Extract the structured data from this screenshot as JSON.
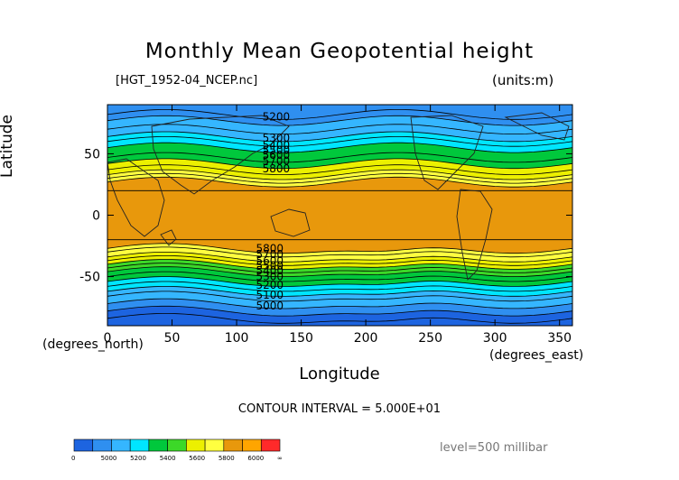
{
  "chart_data": {
    "type": "contour",
    "title": "Monthly Mean Geopotential height",
    "source_file": "[HGT_1952-04_NCEP.nc]",
    "units": "(units:m)",
    "xlabel": "Longitude",
    "ylabel": "Latitude",
    "x_unit_label": "(degrees_east)",
    "y_unit_label": "(degrees_north)",
    "xlim": [
      0,
      360
    ],
    "ylim": [
      -90,
      90
    ],
    "x_ticks": [
      0,
      50,
      100,
      150,
      200,
      250,
      300,
      350
    ],
    "y_ticks": [
      50,
      0,
      -50
    ],
    "contour_interval_text": "CONTOUR INTERVAL = 5.000E+01",
    "level_text": "level=500 millibar",
    "contour_labels": [
      "5200",
      "5300",
      "5400",
      "5500",
      "5600",
      "5700",
      "5800",
      "5800",
      "5700",
      "5600",
      "5500",
      "5400",
      "5300",
      "5200",
      "5100",
      "5000"
    ],
    "fill_bands": [
      {
        "lat": [
          -90,
          -78
        ],
        "color": "#1d64e0"
      },
      {
        "lat": [
          -78,
          -72
        ],
        "color": "#2f8ff0"
      },
      {
        "lat": [
          -72,
          -62
        ],
        "color": "#35b6ff"
      },
      {
        "lat": [
          -62,
          -54
        ],
        "color": "#00e6ff"
      },
      {
        "lat": [
          -54,
          -46
        ],
        "color": "#00c83c"
      },
      {
        "lat": [
          -46,
          -40
        ],
        "color": "#3cd828"
      },
      {
        "lat": [
          -40,
          -34
        ],
        "color": "#ecf000"
      },
      {
        "lat": [
          -34,
          -27
        ],
        "color": "#ffff40"
      },
      {
        "lat": [
          -27,
          27
        ],
        "color": "#e8980c"
      },
      {
        "lat": [
          27,
          33
        ],
        "color": "#ffff40"
      },
      {
        "lat": [
          33,
          42
        ],
        "color": "#ecf000"
      },
      {
        "lat": [
          42,
          55
        ],
        "color": "#00c83c"
      },
      {
        "lat": [
          55,
          64
        ],
        "color": "#00e6ff"
      },
      {
        "lat": [
          64,
          77
        ],
        "color": "#35b6ff"
      },
      {
        "lat": [
          77,
          90
        ],
        "color": "#2f8ff0"
      }
    ],
    "colorbar": {
      "colors": [
        "#1d64e0",
        "#2f8ff0",
        "#35b6ff",
        "#00e6ff",
        "#00c83c",
        "#3cd828",
        "#ecf000",
        "#ffff40",
        "#e8980c",
        "#ffa500",
        "#ff2a2a"
      ],
      "labels": [
        "0",
        "5000",
        "5200",
        "5400",
        "5600",
        "5800",
        "6000",
        "∞"
      ]
    }
  }
}
